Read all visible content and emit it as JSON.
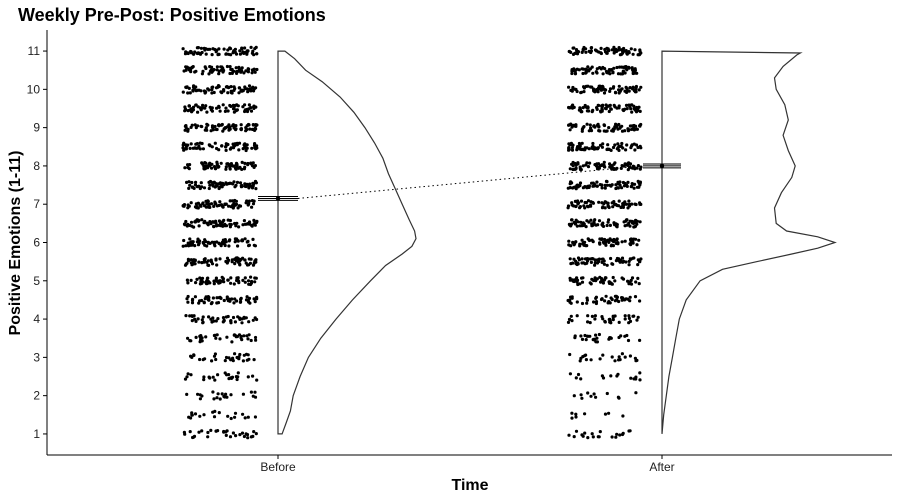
{
  "chart_data": {
    "type": "scatter",
    "title": "Weekly Pre-Post: Positive Emotions",
    "xlabel": "Time",
    "ylabel": "Positive Emotions (1-11)",
    "categories": [
      "Before",
      "After"
    ],
    "y_ticks": [
      1,
      2,
      3,
      4,
      5,
      6,
      7,
      8,
      9,
      10,
      11
    ],
    "ylim": [
      0.45,
      11.55
    ],
    "grid": false,
    "legend": "none",
    "point_color": "#000000",
    "line_color": "#333333",
    "series": [
      {
        "category": "Before",
        "mean": 7.15,
        "ci": [
          7.1,
          7.2
        ],
        "jitter_density": [
          0.45,
          0.28,
          0.3,
          0.36,
          0.42,
          0.5,
          0.62,
          0.75,
          0.88,
          0.95,
          1.0,
          1.0,
          1.0,
          1.0,
          1.0,
          1.0,
          1.0,
          1.0,
          1.0,
          1.0,
          1.0
        ],
        "density_curve": [
          [
            1.0,
            0.03
          ],
          [
            1.3,
            0.06
          ],
          [
            1.6,
            0.09
          ],
          [
            2.0,
            0.11
          ],
          [
            2.5,
            0.16
          ],
          [
            3.0,
            0.22
          ],
          [
            3.5,
            0.31
          ],
          [
            4.0,
            0.42
          ],
          [
            4.5,
            0.54
          ],
          [
            5.0,
            0.67
          ],
          [
            5.4,
            0.78
          ],
          [
            5.7,
            0.9
          ],
          [
            5.9,
            0.97
          ],
          [
            6.1,
            1.0
          ],
          [
            6.3,
            0.99
          ],
          [
            6.6,
            0.95
          ],
          [
            7.0,
            0.9
          ],
          [
            7.4,
            0.85
          ],
          [
            7.8,
            0.8
          ],
          [
            8.2,
            0.76
          ],
          [
            8.6,
            0.7
          ],
          [
            9.0,
            0.63
          ],
          [
            9.4,
            0.55
          ],
          [
            9.8,
            0.45
          ],
          [
            10.2,
            0.32
          ],
          [
            10.5,
            0.2
          ],
          [
            10.8,
            0.12
          ],
          [
            11.0,
            0.05
          ]
        ]
      },
      {
        "category": "After",
        "mean": 8.0,
        "ci": [
          7.95,
          8.05
        ],
        "jitter_density": [
          0.28,
          0.12,
          0.16,
          0.22,
          0.3,
          0.4,
          0.5,
          0.62,
          0.75,
          0.88,
          1.0,
          1.0,
          1.0,
          1.0,
          1.0,
          1.0,
          1.0,
          1.0,
          1.0,
          1.0,
          1.0
        ],
        "density_curve": [
          [
            1.0,
            0.0
          ],
          [
            1.5,
            0.01
          ],
          [
            2.0,
            0.025
          ],
          [
            2.5,
            0.04
          ],
          [
            3.0,
            0.06
          ],
          [
            3.5,
            0.08
          ],
          [
            4.0,
            0.1
          ],
          [
            4.5,
            0.14
          ],
          [
            5.0,
            0.22
          ],
          [
            5.3,
            0.35
          ],
          [
            5.5,
            0.55
          ],
          [
            5.7,
            0.75
          ],
          [
            5.85,
            0.9
          ],
          [
            6.0,
            1.0
          ],
          [
            6.15,
            0.9
          ],
          [
            6.3,
            0.72
          ],
          [
            6.5,
            0.66
          ],
          [
            6.9,
            0.65
          ],
          [
            7.3,
            0.69
          ],
          [
            7.7,
            0.75
          ],
          [
            8.0,
            0.77
          ],
          [
            8.4,
            0.73
          ],
          [
            8.8,
            0.7
          ],
          [
            9.2,
            0.73
          ],
          [
            9.6,
            0.71
          ],
          [
            10.0,
            0.66
          ],
          [
            10.3,
            0.65
          ],
          [
            10.6,
            0.7
          ],
          [
            10.9,
            0.78
          ],
          [
            10.95,
            0.8
          ],
          [
            11.0,
            0.0
          ]
        ]
      }
    ]
  }
}
